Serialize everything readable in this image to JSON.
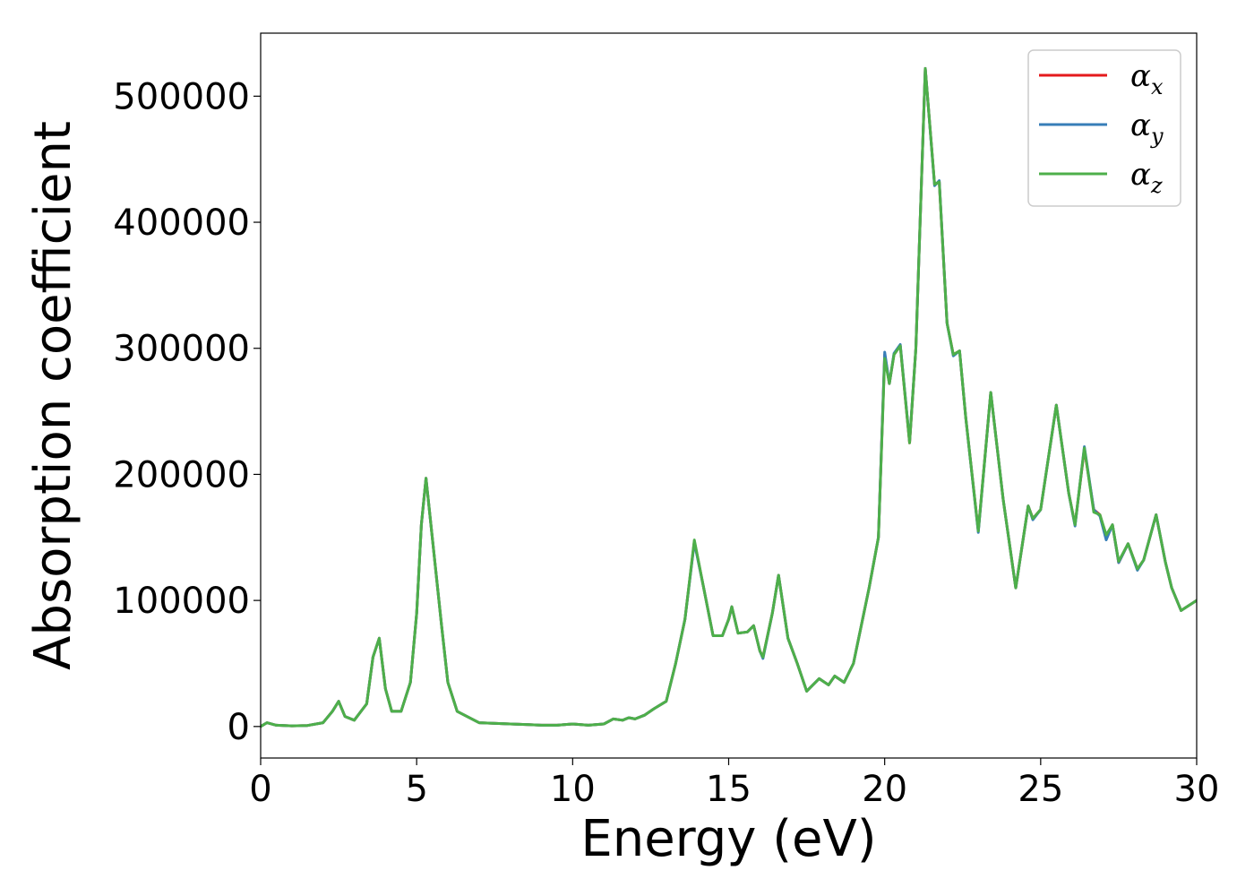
{
  "chart_data": {
    "type": "line",
    "xlabel": "Energy (eV)",
    "ylabel": "Absorption coefficient",
    "xlim": [
      0,
      30
    ],
    "ylim": [
      -25000,
      550000
    ],
    "xticks": [
      0,
      5,
      10,
      15,
      20,
      25,
      30
    ],
    "xtick_labels": [
      "0",
      "5",
      "10",
      "15",
      "20",
      "25",
      "30"
    ],
    "yticks": [
      0,
      100000,
      200000,
      300000,
      400000,
      500000
    ],
    "ytick_labels": [
      "0",
      "100000",
      "200000",
      "300000",
      "400000",
      "500000"
    ],
    "grid": false,
    "legend_position": "top-right",
    "legend": [
      {
        "base": "α",
        "sub": "x",
        "color": "#e41a1c"
      },
      {
        "base": "α",
        "sub": "y",
        "color": "#377eb8"
      },
      {
        "base": "α",
        "sub": "z",
        "color": "#4daf4a"
      }
    ],
    "series": [
      {
        "name": "αx",
        "color": "#e41a1c",
        "x": [
          0,
          0.2,
          0.5,
          1.0,
          1.5,
          2.0,
          2.3,
          2.5,
          2.7,
          3.0,
          3.4,
          3.6,
          3.8,
          4.0,
          4.2,
          4.5,
          4.8,
          5.0,
          5.15,
          5.3,
          5.5,
          5.8,
          6.0,
          6.3,
          7.0,
          8.0,
          8.6,
          9.0,
          9.5,
          10.0,
          10.5,
          11.0,
          11.3,
          11.6,
          11.8,
          12.0,
          12.3,
          12.6,
          13.0,
          13.3,
          13.6,
          13.9,
          14.2,
          14.5,
          14.8,
          15.0,
          15.1,
          15.3,
          15.6,
          15.8,
          16.0,
          16.1,
          16.4,
          16.6,
          16.9,
          17.2,
          17.5,
          17.9,
          18.2,
          18.4,
          18.7,
          19.0,
          19.5,
          19.8,
          20.0,
          20.15,
          20.3,
          20.5,
          20.8,
          21.0,
          21.3,
          21.6,
          21.75,
          22.0,
          22.2,
          22.4,
          22.6,
          23.0,
          23.4,
          23.8,
          24.2,
          24.6,
          24.75,
          25.0,
          25.5,
          25.9,
          26.1,
          26.4,
          26.7,
          26.9,
          27.1,
          27.3,
          27.5,
          27.8,
          28.1,
          28.3,
          28.7,
          29.0,
          29.2,
          29.5,
          30.0
        ],
        "y": [
          0,
          3000,
          1000,
          500,
          800,
          3000,
          12000,
          20000,
          8000,
          5000,
          18000,
          55000,
          70000,
          30000,
          12000,
          12000,
          35000,
          90000,
          160000,
          197000,
          150000,
          80000,
          35000,
          12000,
          3000,
          2000,
          1500,
          1000,
          1000,
          2000,
          1000,
          2000,
          6000,
          5000,
          7000,
          6000,
          9000,
          14000,
          20000,
          50000,
          85000,
          147000,
          110000,
          72000,
          72000,
          85000,
          95000,
          74000,
          75000,
          80000,
          60000,
          55000,
          90000,
          120000,
          70000,
          50000,
          28000,
          38000,
          33000,
          40000,
          35000,
          50000,
          110000,
          150000,
          295000,
          272000,
          295000,
          302000,
          225000,
          300000,
          522000,
          430000,
          432000,
          320000,
          295000,
          298000,
          245000,
          155000,
          265000,
          180000,
          110000,
          175000,
          165000,
          172000,
          255000,
          185000,
          160000,
          220000,
          172000,
          168000,
          150000,
          160000,
          130000,
          145000,
          125000,
          132000,
          168000,
          130000,
          110000,
          92000,
          100000
        ]
      },
      {
        "name": "αy",
        "color": "#377eb8",
        "x": [
          0,
          0.2,
          0.5,
          1.0,
          1.5,
          2.0,
          2.3,
          2.5,
          2.7,
          3.0,
          3.4,
          3.6,
          3.8,
          4.0,
          4.2,
          4.5,
          4.8,
          5.0,
          5.15,
          5.3,
          5.5,
          5.8,
          6.0,
          6.3,
          7.0,
          8.0,
          8.6,
          9.0,
          9.5,
          10.0,
          10.5,
          11.0,
          11.3,
          11.6,
          11.8,
          12.0,
          12.3,
          12.6,
          13.0,
          13.3,
          13.6,
          13.9,
          14.2,
          14.5,
          14.8,
          15.0,
          15.1,
          15.3,
          15.6,
          15.8,
          16.0,
          16.1,
          16.4,
          16.6,
          16.9,
          17.2,
          17.5,
          17.9,
          18.2,
          18.4,
          18.7,
          19.0,
          19.5,
          19.8,
          20.0,
          20.15,
          20.3,
          20.5,
          20.8,
          21.0,
          21.3,
          21.6,
          21.75,
          22.0,
          22.2,
          22.4,
          22.6,
          23.0,
          23.4,
          23.8,
          24.2,
          24.6,
          24.75,
          25.0,
          25.5,
          25.9,
          26.1,
          26.4,
          26.7,
          26.9,
          27.1,
          27.3,
          27.5,
          27.8,
          28.1,
          28.3,
          28.7,
          29.0,
          29.2,
          29.5,
          30.0
        ],
        "y": [
          0,
          3000,
          1000,
          500,
          800,
          3000,
          12000,
          20000,
          8000,
          5000,
          18000,
          55000,
          70000,
          30000,
          12000,
          12000,
          35000,
          90000,
          160000,
          197000,
          150000,
          80000,
          35000,
          12000,
          3000,
          2000,
          1500,
          1000,
          1000,
          2000,
          1000,
          2000,
          6000,
          5000,
          7000,
          6000,
          9000,
          14000,
          20000,
          50000,
          85000,
          146000,
          110000,
          72000,
          72000,
          85000,
          95000,
          74000,
          75000,
          80000,
          60000,
          54000,
          90000,
          120000,
          70000,
          50000,
          28000,
          38000,
          33000,
          40000,
          35000,
          50000,
          110000,
          150000,
          297000,
          272000,
          296000,
          303000,
          226000,
          300000,
          522000,
          429000,
          433000,
          320000,
          294000,
          298000,
          245000,
          154000,
          265000,
          180000,
          110000,
          175000,
          164000,
          172000,
          255000,
          185000,
          159000,
          222000,
          172000,
          167000,
          148000,
          160000,
          130000,
          145000,
          124000,
          132000,
          168000,
          130000,
          110000,
          92000,
          100000
        ]
      },
      {
        "name": "αz",
        "color": "#4daf4a",
        "x": [
          0,
          0.2,
          0.5,
          1.0,
          1.5,
          2.0,
          2.3,
          2.5,
          2.7,
          3.0,
          3.4,
          3.6,
          3.8,
          4.0,
          4.2,
          4.5,
          4.8,
          5.0,
          5.15,
          5.3,
          5.5,
          5.8,
          6.0,
          6.3,
          7.0,
          8.0,
          8.6,
          9.0,
          9.5,
          10.0,
          10.5,
          11.0,
          11.3,
          11.6,
          11.8,
          12.0,
          12.3,
          12.6,
          13.0,
          13.3,
          13.6,
          13.9,
          14.2,
          14.5,
          14.8,
          15.0,
          15.1,
          15.3,
          15.6,
          15.8,
          16.0,
          16.1,
          16.4,
          16.6,
          16.9,
          17.2,
          17.5,
          17.9,
          18.2,
          18.4,
          18.7,
          19.0,
          19.5,
          19.8,
          20.0,
          20.15,
          20.3,
          20.5,
          20.8,
          21.0,
          21.3,
          21.6,
          21.75,
          22.0,
          22.2,
          22.4,
          22.6,
          23.0,
          23.4,
          23.8,
          24.2,
          24.6,
          24.75,
          25.0,
          25.5,
          25.9,
          26.1,
          26.4,
          26.7,
          26.9,
          27.1,
          27.3,
          27.5,
          27.8,
          28.1,
          28.3,
          28.7,
          29.0,
          29.2,
          29.5,
          30.0
        ],
        "y": [
          0,
          3000,
          1000,
          500,
          800,
          3000,
          12000,
          20000,
          8000,
          5000,
          18000,
          55000,
          70000,
          30000,
          12000,
          12000,
          35000,
          90000,
          160000,
          197000,
          150000,
          80000,
          35000,
          12000,
          3000,
          2000,
          1500,
          1000,
          1000,
          2000,
          1000,
          2000,
          6000,
          5000,
          7000,
          6000,
          9000,
          14000,
          20000,
          50000,
          85000,
          148000,
          110000,
          72000,
          72000,
          85000,
          95000,
          74000,
          75000,
          80000,
          60000,
          55000,
          90000,
          120000,
          70000,
          50000,
          28000,
          38000,
          33000,
          40000,
          35000,
          50000,
          110000,
          150000,
          292000,
          272000,
          295000,
          302000,
          225000,
          300000,
          522000,
          430000,
          432000,
          320000,
          295000,
          298000,
          245000,
          155000,
          265000,
          180000,
          110000,
          175000,
          165000,
          172000,
          255000,
          185000,
          160000,
          221000,
          170000,
          168000,
          152000,
          160000,
          131000,
          145000,
          125000,
          132000,
          168000,
          130000,
          110000,
          92000,
          100000
        ]
      }
    ]
  }
}
